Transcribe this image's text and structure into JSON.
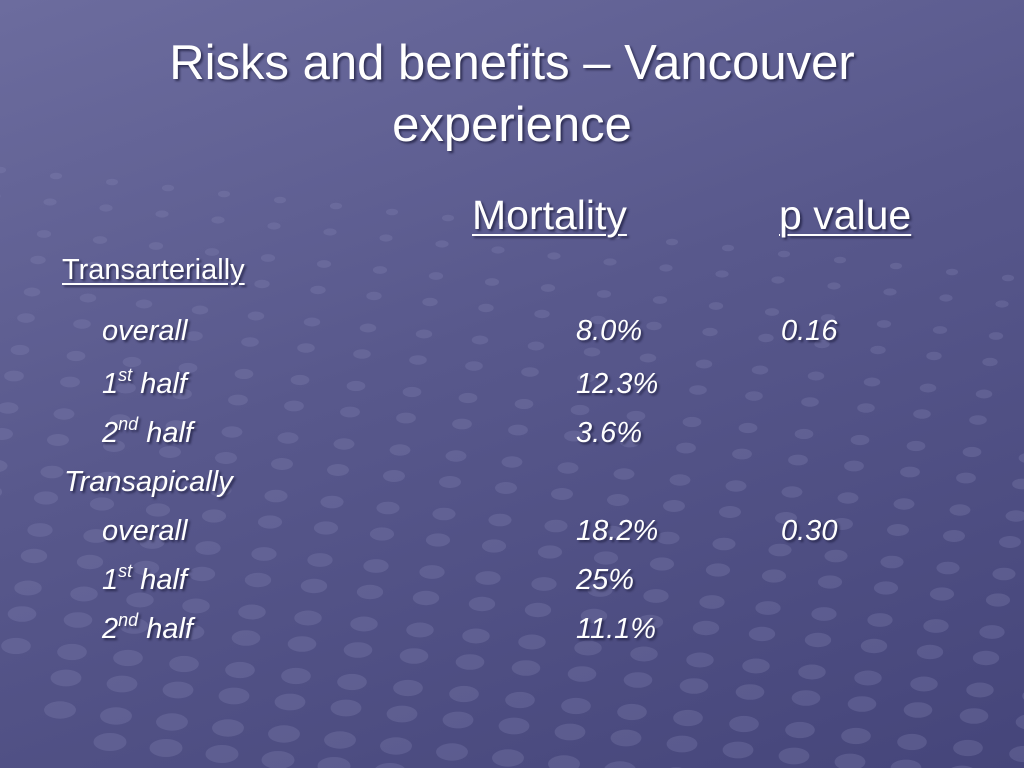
{
  "slide": {
    "title": "Risks and benefits – Vancouver experience",
    "headers": {
      "mortality": "Mortality",
      "p_value": "p value"
    },
    "groups": [
      {
        "label": "Transarterially",
        "rows": [
          {
            "label": "overall",
            "mortality": "8.0%",
            "p_value": "0.16"
          },
          {
            "ordinal": "1",
            "suffix": "st",
            "word": "half",
            "mortality": "12.3%"
          },
          {
            "ordinal": "2",
            "suffix": "nd",
            "word": "half",
            "mortality": "3.6%"
          }
        ]
      },
      {
        "label": "Transapically",
        "rows": [
          {
            "label": "overall",
            "mortality": "18.2%",
            "p_value": "0.30"
          },
          {
            "ordinal": "1",
            "suffix": "st",
            "word": "half",
            "mortality": "25%"
          },
          {
            "ordinal": "2",
            "suffix": "nd",
            "word": "half",
            "mortality": "11.1%"
          }
        ]
      }
    ]
  },
  "colors": {
    "text": "#ffffff",
    "background": "#5a5a8e"
  }
}
